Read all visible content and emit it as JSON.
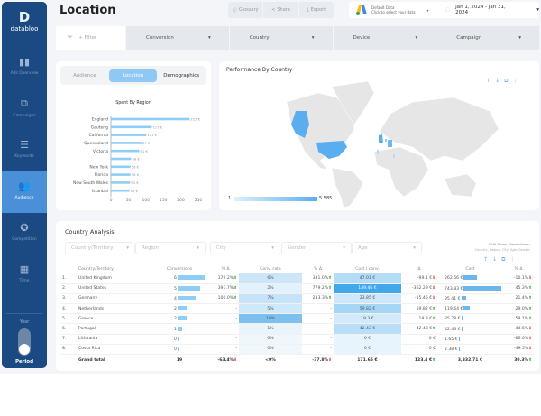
{
  "app": {
    "logo": "databloo",
    "title": "Location"
  },
  "sidebar": {
    "items": [
      {
        "label": "Ads Overview",
        "icon": "bar-chart-icon"
      },
      {
        "label": "Campaigns",
        "icon": "hierarchy-icon"
      },
      {
        "label": "Keywords",
        "icon": "list-icon"
      },
      {
        "label": "Audience",
        "icon": "users-icon",
        "active": true
      },
      {
        "label": "Competition",
        "icon": "badge-icon"
      },
      {
        "label": "Time",
        "icon": "calendar-icon"
      }
    ],
    "year_label": "Year",
    "period_label": "Period"
  },
  "toolbar": {
    "glossary": "Glossary",
    "share": "Share",
    "export": "Export"
  },
  "datasource": {
    "title": "Default Data",
    "subtitle": "Click to select your data"
  },
  "daterange": "Jan 1, 2024 - Jan 31, 2024",
  "filters": {
    "add": "+ Filter",
    "dropdowns": [
      "Conversion",
      "Country",
      "Device",
      "Campaign"
    ]
  },
  "tabs": [
    "Audience",
    "Location",
    "Demographics"
  ],
  "spent_chart": {
    "title": "Spent By Region",
    "type": "bar",
    "categories": [
      "England",
      "Gauteng",
      "California",
      "Queensland",
      "Victoria",
      "",
      "New York",
      "Florida",
      "New South Wales",
      "Istanbul"
    ],
    "values": [
      225,
      117,
      101,
      87,
      81,
      58,
      56,
      56,
      55,
      53
    ],
    "labels": [
      "225 €",
      "117 €",
      "101 €",
      "87 €",
      "81 €",
      "58 €",
      "56 €",
      "56 €",
      "55 €",
      "53 €"
    ],
    "xticks": [
      "0",
      "50",
      "100",
      "150",
      "200",
      "250"
    ],
    "xlim": [
      0,
      250
    ]
  },
  "map": {
    "title": "Performance By Country",
    "legend_min": "1",
    "legend_max": "5.585",
    "accent": "#5aaef0"
  },
  "analysis": {
    "title": "Country Analysis",
    "selectors": [
      "Country/Territory",
      "Region",
      "City",
      "Gender",
      "Age"
    ],
    "drill_title": "Drill Down Dimensions:",
    "drill_text": "Country, Region, City, Age, Gender",
    "headers": [
      "Country/Territory",
      "Conversions",
      "% Δ",
      "Conv. rate",
      "% Δ",
      "Cost / conv.",
      "Δ",
      "Cost",
      "% Δ"
    ],
    "rows": [
      {
        "n": "1.",
        "country": "United Kingdom",
        "conv": "6",
        "conv_v": 6,
        "d1": "179.2%",
        "d1u": true,
        "rate": "6%",
        "rate_v": 6,
        "d2": "331.0%",
        "d2u": true,
        "cpc": "47.01 €",
        "cpc_v": 47.01,
        "d3": "-99.1 €",
        "d3u": false,
        "cost": "262.56 €",
        "cost_v": 262.56,
        "d4": "-10.1%",
        "d4u": false
      },
      {
        "n": "2.",
        "country": "United States",
        "conv": "5",
        "conv_v": 5,
        "d1": "397.7%",
        "d1u": true,
        "rate": "2%",
        "rate_v": 2,
        "d2": "779.2%",
        "d2u": true,
        "cpc": "149.46 €",
        "cpc_v": 149.46,
        "d3": "-362.29 €",
        "d3u": false,
        "cost": "743.83 €",
        "cost_v": 743.83,
        "d4": "45.3%",
        "d4u": true
      },
      {
        "n": "3.",
        "country": "Germany",
        "conv": "4",
        "conv_v": 4,
        "d1": "100.0%",
        "d1u": true,
        "rate": "7%",
        "rate_v": 7,
        "d2": "233.3%",
        "d2u": true,
        "cpc": "23.85 €",
        "cpc_v": 23.85,
        "d3": "-15.45 €",
        "d3u": false,
        "cost": "95.41 €",
        "cost_v": 95.41,
        "d4": "21.4%",
        "d4u": true
      },
      {
        "n": "4.",
        "country": "Netherlands",
        "conv": "2",
        "conv_v": 2,
        "d1": "-",
        "rate": "5%",
        "rate_v": 5,
        "d2": "-",
        "cpc": "59.82 €",
        "cpc_v": 59.82,
        "d3": "59.82 €",
        "d3u": true,
        "cost": "119.64 €",
        "cost_v": 119.64,
        "d4": "29.0%",
        "d4u": true
      },
      {
        "n": "5.",
        "country": "Greece",
        "conv": "2",
        "conv_v": 2,
        "d1": "-",
        "rate": "19%",
        "rate_v": 19,
        "d2": "-",
        "cpc": "19.3 €",
        "cpc_v": 19.3,
        "d3": "19.3 €",
        "d3u": true,
        "cost": "35.78 €",
        "cost_v": 35.78,
        "d4": "59.1%",
        "d4u": true
      },
      {
        "n": "6.",
        "country": "Portugal",
        "conv": "1",
        "conv_v": 1,
        "d1": "-",
        "rate": "1%",
        "rate_v": 1,
        "d2": "-",
        "cpc": "42.43 €",
        "cpc_v": 42.43,
        "d3": "42.43 €",
        "d3u": true,
        "cost": "42.43 €",
        "cost_v": 42.43,
        "d4": "-44.6%",
        "d4u": false
      },
      {
        "n": "7.",
        "country": "Lithuania",
        "conv": "0",
        "conv_v": 0,
        "d1": "-",
        "rate": "0%",
        "rate_v": 0,
        "d2": "-",
        "cpc": "0 €",
        "cpc_v": 0,
        "d3": "0 €",
        "cost": "1.65 €",
        "cost_v": 1.65,
        "d4": "-66.0%",
        "d4u": false
      },
      {
        "n": "8.",
        "country": "Costa Rica",
        "conv": "0",
        "conv_v": 0,
        "d1": "-",
        "rate": "0%",
        "rate_v": 0,
        "d2": "-",
        "cpc": "0 €",
        "cpc_v": 0,
        "d3": "0 €",
        "cost": "2.38 €",
        "cost_v": 2.38,
        "d4": "-49.5%",
        "d4u": false
      }
    ],
    "total": {
      "label": "Grand total",
      "conv": "19",
      "d1": "-63.4%",
      "rate": "<0%",
      "d2": "-37.8%",
      "cpc": "171.65 €",
      "d3": "123.4 €",
      "cost": "3,332.71 €",
      "d4": "30.3%"
    }
  }
}
